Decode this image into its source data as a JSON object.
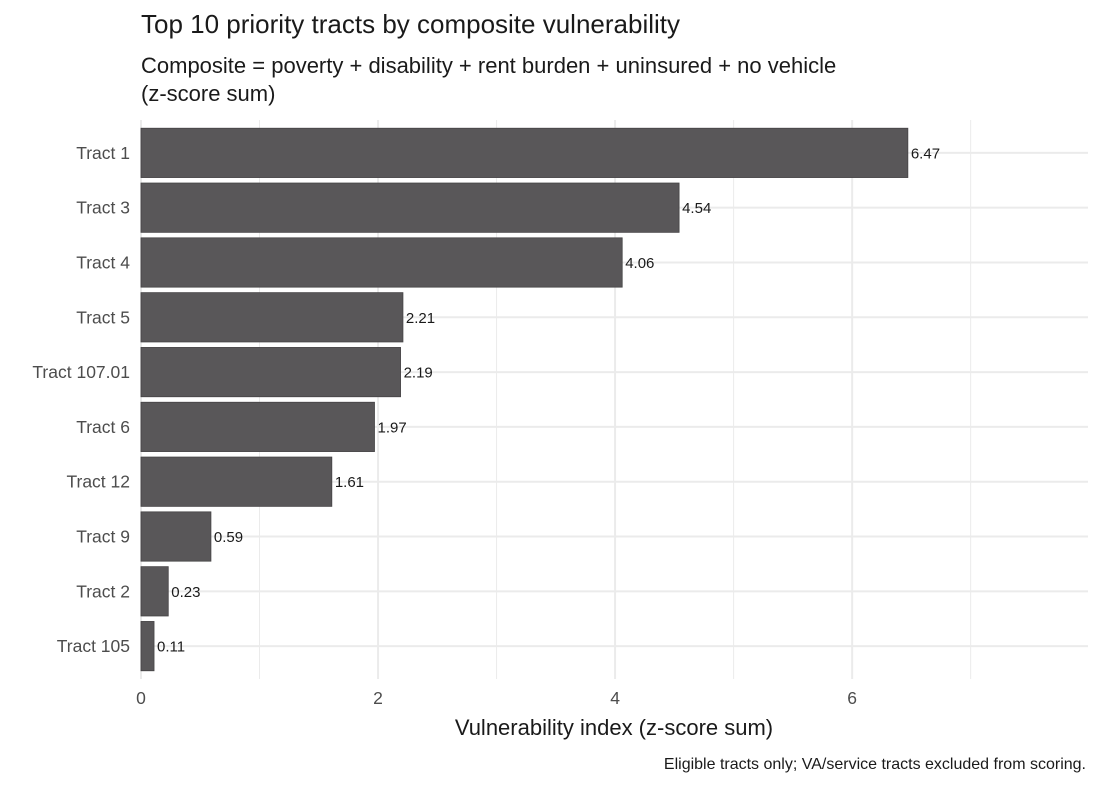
{
  "chart_data": {
    "type": "bar",
    "orientation": "horizontal",
    "title": "Top 10 priority tracts by composite vulnerability",
    "subtitle_lines": [
      "Composite = poverty + disability + rent burden + uninsured + no vehicle",
      "(z-score sum)"
    ],
    "xlabel": "Vulnerability index (z-score sum)",
    "ylabel": "",
    "caption": "Eligible tracts only; VA/service tracts excluded from scoring.",
    "categories": [
      "Tract 1",
      "Tract 3",
      "Tract 4",
      "Tract 5",
      "Tract 107.01",
      "Tract 6",
      "Tract 12",
      "Tract 9",
      "Tract 2",
      "Tract 105"
    ],
    "values": [
      6.47,
      4.54,
      4.06,
      2.21,
      2.19,
      1.97,
      1.61,
      0.59,
      0.23,
      0.11
    ],
    "value_labels": [
      "6.47",
      "4.54",
      "4.06",
      "2.21",
      "2.19",
      "1.97",
      "1.61",
      "0.59",
      "0.23",
      "0.11"
    ],
    "xlim": [
      0,
      7.99
    ],
    "xticks": [
      0,
      2,
      4,
      6
    ],
    "xtick_labels": [
      "0",
      "2",
      "4",
      "6"
    ],
    "minor_xticks": [
      1,
      3,
      5,
      7
    ],
    "grid": true,
    "legend": "none",
    "colors": {
      "bar": "#595759",
      "bar_border": "#454345",
      "grid": "#ebebeb",
      "text": "#1a1a1a",
      "tick_text": "#4d4d4d"
    }
  }
}
